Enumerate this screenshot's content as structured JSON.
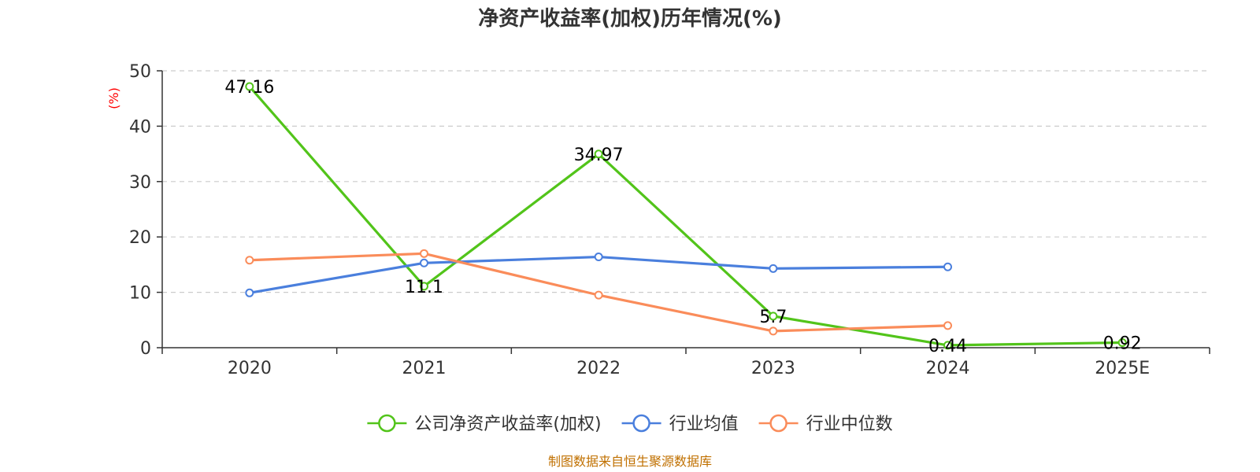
{
  "chart_data": {
    "type": "line",
    "title": "净资产收益率(加权)历年情况(%)",
    "ylabel": "(%)",
    "xlabel": "",
    "categories": [
      "2020",
      "2021",
      "2022",
      "2023",
      "2024",
      "2025E"
    ],
    "ylim": [
      0,
      50
    ],
    "yticks": [
      0,
      10,
      20,
      30,
      40,
      50
    ],
    "grid": true,
    "legend_position": "bottom",
    "series": [
      {
        "name": "公司净资产收益率(加权)",
        "color": "#52c41a",
        "values": [
          47.16,
          11.1,
          34.97,
          5.7,
          0.44,
          0.92
        ],
        "labels": [
          "47.16",
          "11.1",
          "34.97",
          "5.7",
          "0.44",
          "0.92"
        ]
      },
      {
        "name": "行业均值",
        "color": "#4a7fdd",
        "values": [
          9.9,
          15.3,
          16.4,
          14.3,
          14.6,
          null
        ]
      },
      {
        "name": "行业中位数",
        "color": "#fa8c5a",
        "values": [
          15.8,
          17.0,
          9.5,
          3.0,
          4.0,
          null
        ]
      }
    ],
    "source": "制图数据来自恒生聚源数据库",
    "ylabel_color": "#ff0000",
    "source_color": "#c07000"
  }
}
